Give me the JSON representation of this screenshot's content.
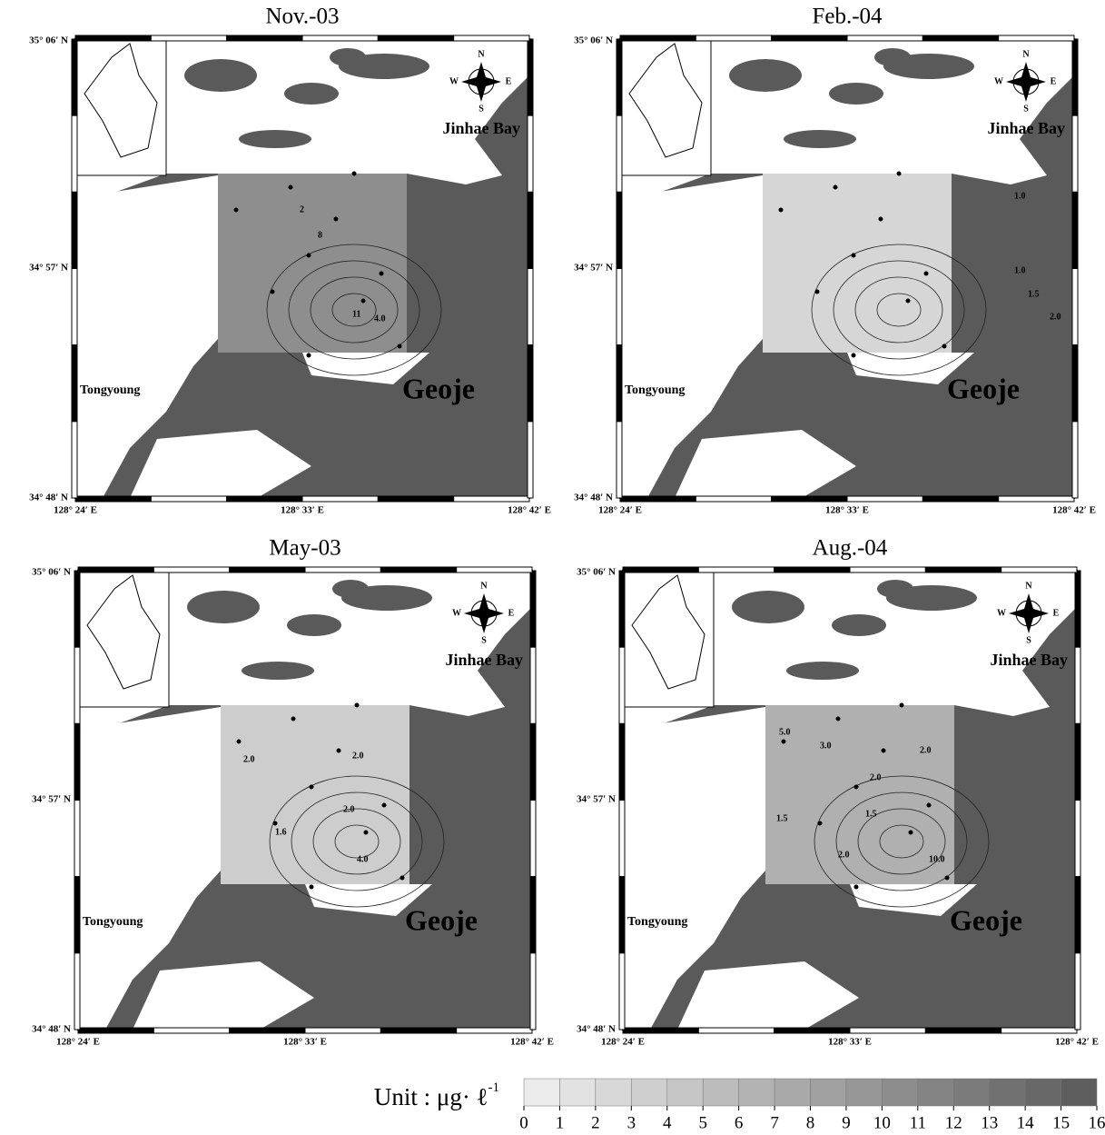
{
  "panels": [
    {
      "title": "Nov.-03",
      "contour_labels": [
        "2",
        "8",
        "11",
        "4.0"
      ]
    },
    {
      "title": "Feb.-04",
      "contour_labels": [
        "1.0",
        "1.0",
        "1.5",
        "2.0"
      ]
    },
    {
      "title": "May-03",
      "contour_labels": [
        "2.0",
        "2.0",
        "1.6",
        "2.0",
        "4.0"
      ]
    },
    {
      "title": "Aug.-04",
      "contour_labels": [
        "5.0",
        "3.0",
        "2.0",
        "2.0",
        "1.5",
        "1.5",
        "2.0",
        "10.0"
      ]
    }
  ],
  "latitude_labels": [
    "35° 06′ N",
    "34° 57′ N",
    "34° 48′ N"
  ],
  "longitude_labels": [
    "128° 24′ E",
    "128° 33′ E",
    "128° 42′ E"
  ],
  "places": {
    "bay": "Jinhae Bay",
    "city": "Tongyoung",
    "island": "Geoje"
  },
  "compass": {
    "north": "N",
    "south": "S",
    "east": "E",
    "west": "W"
  },
  "colorbar": {
    "unit": "Unit : μg· ℓ",
    "unit_exponent": "-1",
    "ticks": [
      0,
      1,
      2,
      3,
      4,
      5,
      6,
      7,
      8,
      9,
      10,
      11,
      12,
      13,
      14,
      15,
      16
    ]
  }
}
